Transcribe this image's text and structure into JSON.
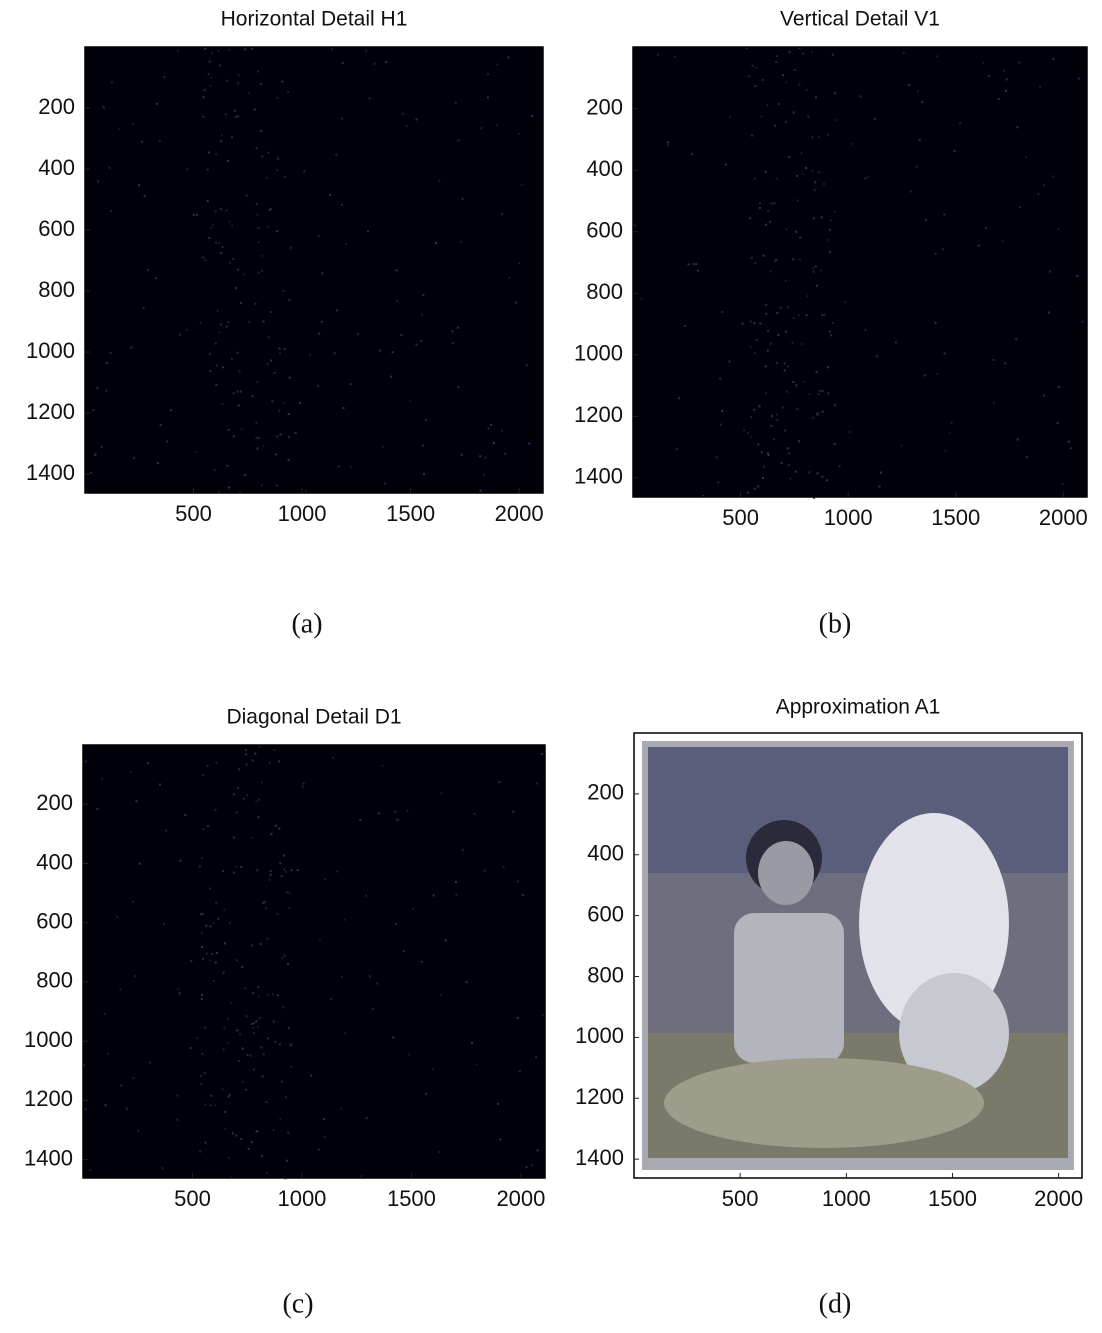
{
  "chart_data": [
    {
      "type": "image",
      "title": "Horizontal Detail H1",
      "caption": "(a)",
      "xlim": [
        0,
        2110
      ],
      "ylim": [
        0,
        1462
      ],
      "y_reversed": true,
      "xticks": [
        500,
        1000,
        1500,
        2000
      ],
      "yticks": [
        200,
        400,
        600,
        800,
        1000,
        1200,
        1400
      ]
    },
    {
      "type": "image",
      "title": "Vertical Detail V1",
      "caption": "(b)",
      "xlim": [
        0,
        2110
      ],
      "ylim": [
        0,
        1462
      ],
      "y_reversed": true,
      "xticks": [
        500,
        1000,
        1500,
        2000
      ],
      "yticks": [
        200,
        400,
        600,
        800,
        1000,
        1200,
        1400
      ]
    },
    {
      "type": "image",
      "title": "Diagonal Detail D1",
      "caption": "(c)",
      "xlim": [
        0,
        2110
      ],
      "ylim": [
        0,
        1462
      ],
      "y_reversed": true,
      "xticks": [
        500,
        1000,
        1500,
        2000
      ],
      "yticks": [
        200,
        400,
        600,
        800,
        1000,
        1200,
        1400
      ]
    },
    {
      "type": "image",
      "title": "Approximation A1",
      "caption": "(d)",
      "xlim": [
        0,
        2110
      ],
      "ylim": [
        0,
        1462
      ],
      "y_reversed": true,
      "xticks": [
        500,
        1000,
        1500,
        2000
      ],
      "yticks": [
        200,
        400,
        600,
        800,
        1000,
        1200,
        1400
      ]
    }
  ]
}
